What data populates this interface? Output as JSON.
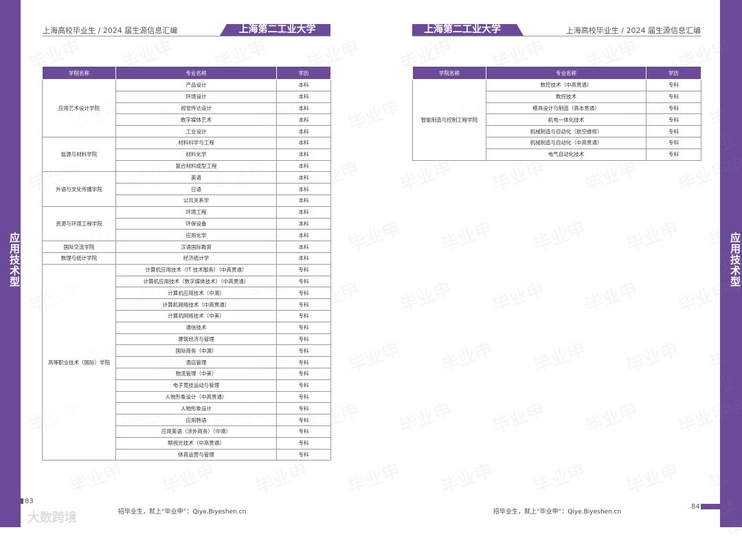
{
  "header": {
    "subtitle": "上海高校毕业生 / 2024 届生源信息汇编",
    "university": "上海第二工业大学"
  },
  "side_label": "应用技术型",
  "table_headers": [
    "学院名称",
    "专业名称",
    "学历"
  ],
  "left_table": [
    {
      "college": "应用艺术设计学院",
      "majors": [
        [
          "产品设计",
          "本科"
        ],
        [
          "环境设计",
          "本科"
        ],
        [
          "视觉传达设计",
          "本科"
        ],
        [
          "数字媒体艺术",
          "本科"
        ],
        [
          "工业设计",
          "本科"
        ]
      ]
    },
    {
      "college": "能源与材料学院",
      "majors": [
        [
          "材料科学与工程",
          "本科"
        ],
        [
          "材料化学",
          "本科"
        ],
        [
          "复合材料成型工程",
          "本科"
        ]
      ]
    },
    {
      "college": "外语与文化传播学院",
      "majors": [
        [
          "英语",
          "本科"
        ],
        [
          "日语",
          "本科"
        ],
        [
          "公共关系学",
          "本科"
        ]
      ]
    },
    {
      "college": "资源与环境工程学院",
      "majors": [
        [
          "环境工程",
          "本科"
        ],
        [
          "环保设备",
          "本科"
        ],
        [
          "应用化学",
          "本科"
        ]
      ]
    },
    {
      "college": "国际交流学院",
      "majors": [
        [
          "汉语国际教育",
          "本科"
        ]
      ]
    },
    {
      "college": "数理与统计学院",
      "majors": [
        [
          "经济统计学",
          "本科"
        ]
      ]
    },
    {
      "college": "高等职业技术（国际）学院",
      "majors": [
        [
          "计算机应用技术（IT 技术服务）（中高贯通）",
          "专科"
        ],
        [
          "计算机应用技术（数字媒体技术）（中高贯通）",
          "专科"
        ],
        [
          "计算机应用技术（中澳）",
          "专科"
        ],
        [
          "计算机网络技术（中高贯通）",
          "专科"
        ],
        [
          "计算机网络技术（中美）",
          "专科"
        ],
        [
          "通信技术",
          "专科"
        ],
        [
          "建筑经济与管理",
          "专科"
        ],
        [
          "国际商务（中澳）",
          "专科"
        ],
        [
          "酒店管理",
          "专科"
        ],
        [
          "物流管理（中美）",
          "专科"
        ],
        [
          "电子竞技运动与管理",
          "专科"
        ],
        [
          "人物形象设计（中高贯通）",
          "专科"
        ],
        [
          "人物形象设计",
          "专科"
        ],
        [
          "应用韩语",
          "专科"
        ],
        [
          "应用英语（涉外商务）（中澳）",
          "专科"
        ],
        [
          "眼视光技术（中高贯通）",
          "专科"
        ],
        [
          "体育运营与管理",
          "专科"
        ]
      ]
    }
  ],
  "right_table": [
    {
      "college": "智能制造与控制工程学院",
      "majors": [
        [
          "数控技术（中高贯通）",
          "专科"
        ],
        [
          "数控技术",
          "专科"
        ],
        [
          "模具设计与制造（高本贯通）",
          "专科"
        ],
        [
          "机电一体化技术",
          "专科"
        ],
        [
          "机械制造与自动化（航空维修）",
          "专科"
        ],
        [
          "机械制造与自动化（中高贯通）",
          "专科"
        ],
        [
          "电气自动化技术",
          "专科"
        ]
      ]
    }
  ],
  "footer": {
    "slogan": "招毕业生，就上“毕业申”：Qiye.Biyeshen.cn",
    "left_page": "83",
    "right_page": "84",
    "watermark": "毕业申",
    "corner_logo": "大数跨境"
  },
  "colors": {
    "accent": "#6b4a9a"
  }
}
